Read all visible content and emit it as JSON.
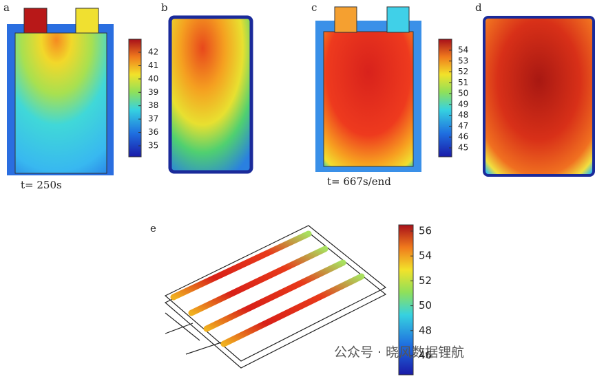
{
  "panels": [
    {
      "label": "a",
      "caption": "t= 250s"
    },
    {
      "label": "b"
    },
    {
      "label": "c",
      "caption": "t= 667s/end"
    },
    {
      "label": "d"
    },
    {
      "label": "e"
    }
  ],
  "colorbars": [
    {
      "ticks": [
        42,
        41,
        40,
        39,
        38,
        37,
        36,
        35
      ]
    },
    {
      "ticks": [
        54,
        53,
        52,
        51,
        50,
        49,
        48,
        47,
        46,
        45
      ]
    },
    {
      "ticks": [
        56,
        54,
        52,
        50,
        48,
        46
      ]
    }
  ],
  "watermark": "公众号 · 晓风数据锂航"
}
